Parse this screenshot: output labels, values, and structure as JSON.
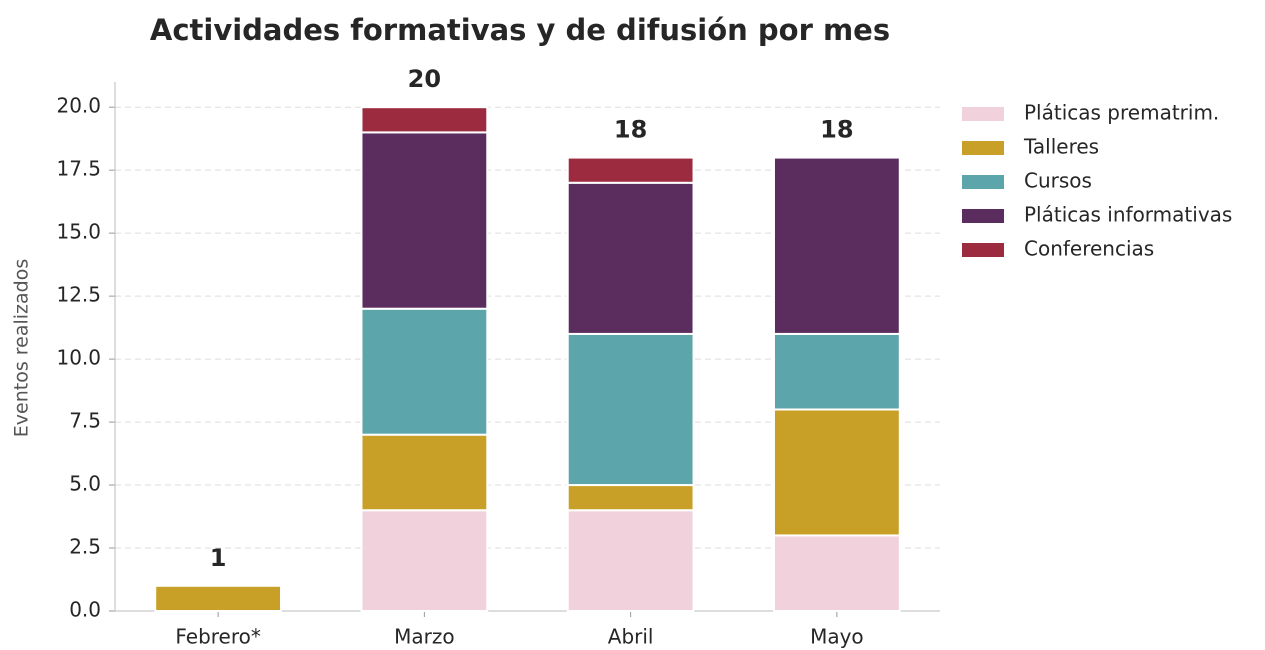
{
  "chart_data": {
    "type": "stacked_bar",
    "title": "Actividades formativas y de difusión por mes",
    "y_label": "Eventos realizados",
    "categories": [
      "Febrero*",
      "Marzo",
      "Abril",
      "Mayo"
    ],
    "series": [
      {
        "name": "Pláticas prematrim.",
        "color": "#f0d1dc",
        "values": [
          0,
          4,
          4,
          3
        ]
      },
      {
        "name": "Talleres",
        "color": "#c9a027",
        "values": [
          1,
          3,
          1,
          5
        ]
      },
      {
        "name": "Cursos",
        "color": "#5ba5ab",
        "values": [
          0,
          5,
          6,
          3
        ]
      },
      {
        "name": "Pláticas informativas",
        "color": "#5b2d5e",
        "values": [
          0,
          7,
          6,
          7
        ]
      },
      {
        "name": "Conferencias",
        "color": "#9c2b3f",
        "values": [
          0,
          1,
          1,
          0
        ]
      }
    ],
    "totals": [
      1,
      20,
      18,
      18
    ],
    "ylim": [
      0,
      21
    ],
    "yticks": [
      {
        "value": 0,
        "label": "0.0"
      },
      2.5,
      {
        "value": 5,
        "label": "5.0"
      },
      7.5,
      {
        "value": 10,
        "label": "10.0"
      },
      12.5,
      {
        "value": 15,
        "label": "15.0"
      },
      17.5,
      {
        "value": 20,
        "label": "20.0"
      }
    ],
    "grid": true,
    "legend": "outside-right"
  }
}
